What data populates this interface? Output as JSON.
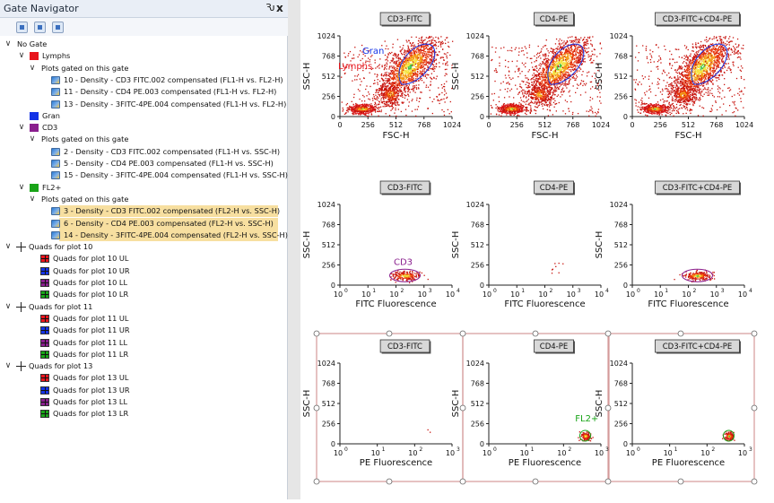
{
  "navigator": {
    "title": "Gate Navigator",
    "pin_glyph": "Ԅ",
    "close_glyph": "x",
    "toolbar": [
      {
        "icon": "gate-tool-icon"
      },
      {
        "icon": "copy-icon"
      },
      {
        "icon": "tree-options-icon"
      }
    ]
  },
  "tree": [
    {
      "label": "No Gate",
      "indent": 0,
      "expander": "v",
      "icon": "none"
    },
    {
      "label": "Lymphs",
      "indent": 1,
      "expander": "v",
      "icon": "gate",
      "color": "#e8141c"
    },
    {
      "label": "Plots gated on this gate",
      "indent": 2,
      "expander": "v",
      "icon": "none"
    },
    {
      "label": "10 - Density - CD3 FITC.002 compensated (FL1-H vs. FL2-H)",
      "indent": 3,
      "icon": "plot"
    },
    {
      "label": "11 - Density - CD4 PE.003 compensated (FL1-H vs. FL2-H)",
      "indent": 3,
      "icon": "plot"
    },
    {
      "label": "13 - Density - 3FITC-4PE.004 compensated (FL1-H vs. FL2-H)",
      "indent": 3,
      "icon": "plot"
    },
    {
      "label": "Gran",
      "indent": 1,
      "icon": "gate",
      "color": "#1433e6"
    },
    {
      "label": "CD3",
      "indent": 1,
      "expander": "v",
      "icon": "gate",
      "color": "#8a1f8e"
    },
    {
      "label": "Plots gated on this gate",
      "indent": 2,
      "expander": "v",
      "icon": "none"
    },
    {
      "label": "2 - Density - CD3 FITC.002 compensated (FL1-H vs. SSC-H)",
      "indent": 3,
      "icon": "plot"
    },
    {
      "label": "5 - Density - CD4 PE.003 compensated (FL1-H vs. SSC-H)",
      "indent": 3,
      "icon": "plot"
    },
    {
      "label": "15 - Density - 3FITC-4PE.004 compensated (FL1-H vs. SSC-H)",
      "indent": 3,
      "icon": "plot"
    },
    {
      "label": "FL2+",
      "indent": 1,
      "expander": "v",
      "icon": "gate",
      "color": "#19a418"
    },
    {
      "label": "Plots gated on this gate",
      "indent": 2,
      "expander": "v",
      "icon": "none"
    },
    {
      "label": "3 - Density - CD3 FITC.002 compensated (FL2-H vs. SSC-H)",
      "indent": 3,
      "icon": "plot",
      "selected": true
    },
    {
      "label": "6 - Density - CD4 PE.003 compensated (FL2-H vs. SSC-H)",
      "indent": 3,
      "icon": "plot",
      "selected": true
    },
    {
      "label": "14 - Density - 3FITC-4PE.004 compensated (FL2-H vs. SSC-H)",
      "indent": 3,
      "icon": "plot",
      "selected": true
    },
    {
      "label": "Quads for plot 10",
      "indent": 0,
      "expander": "v",
      "icon": "cross"
    },
    {
      "label": "Quads for plot 10 UL",
      "indent": 2,
      "icon": "quad",
      "color": "#e8141c"
    },
    {
      "label": "Quads for plot 10 UR",
      "indent": 2,
      "icon": "quad",
      "color": "#1433e6"
    },
    {
      "label": "Quads for plot 10 LL",
      "indent": 2,
      "icon": "quad",
      "color": "#8a1f8e"
    },
    {
      "label": "Quads for plot 10 LR",
      "indent": 2,
      "icon": "quad",
      "color": "#19a418"
    },
    {
      "label": "Quads for plot 11",
      "indent": 0,
      "expander": "v",
      "icon": "cross"
    },
    {
      "label": "Quads for plot 11 UL",
      "indent": 2,
      "icon": "quad",
      "color": "#e8141c"
    },
    {
      "label": "Quads for plot 11 UR",
      "indent": 2,
      "icon": "quad",
      "color": "#1433e6"
    },
    {
      "label": "Quads for plot 11 LL",
      "indent": 2,
      "icon": "quad",
      "color": "#8a1f8e"
    },
    {
      "label": "Quads for plot 11 LR",
      "indent": 2,
      "icon": "quad",
      "color": "#19a418"
    },
    {
      "label": "Quads for plot 13",
      "indent": 0,
      "expander": "v",
      "icon": "cross"
    },
    {
      "label": "Quads for plot 13 UL",
      "indent": 2,
      "icon": "quad",
      "color": "#e8141c"
    },
    {
      "label": "Quads for plot 13 UR",
      "indent": 2,
      "icon": "quad",
      "color": "#1433e6"
    },
    {
      "label": "Quads for plot 13 LL",
      "indent": 2,
      "icon": "quad",
      "color": "#8a1f8e"
    },
    {
      "label": "Quads for plot 13 LR",
      "indent": 2,
      "icon": "quad",
      "color": "#19a418"
    }
  ],
  "plots": [
    {
      "title": "CD3-FITC",
      "xlabel": "FSC-H",
      "ylabel": "SSC-H",
      "xscale": "linear",
      "xticks": [
        "0",
        "256",
        "512",
        "768",
        "1024"
      ],
      "yticks": [
        "0",
        "256",
        "512",
        "768",
        "1024"
      ],
      "gate_labels": [
        {
          "text": "Gran",
          "color": "#1433e6"
        },
        {
          "text": "Lymphs",
          "color": "#e8141c"
        }
      ],
      "kind": "fsc"
    },
    {
      "title": "CD4-PE",
      "xlabel": "FSC-H",
      "ylabel": "SSC-H",
      "xscale": "linear",
      "xticks": [
        "0",
        "256",
        "512",
        "768",
        "1024"
      ],
      "yticks": [
        "0",
        "256",
        "512",
        "768",
        "1024"
      ],
      "gate_labels": [],
      "kind": "fsc"
    },
    {
      "title": "CD3-FITC+CD4-PE",
      "xlabel": "FSC-H",
      "ylabel": "SSC-H",
      "xscale": "linear",
      "xticks": [
        "0",
        "256",
        "512",
        "768",
        "1024"
      ],
      "yticks": [
        "0",
        "256",
        "512",
        "768",
        "1024"
      ],
      "gate_labels": [],
      "kind": "fsc"
    },
    {
      "title": "CD3-FITC",
      "xlabel": "FITC Fluorescence",
      "ylabel": "SSC-H",
      "xscale": "log",
      "xticks_base": [
        "10",
        "10",
        "10",
        "10",
        "10"
      ],
      "xticks_exp": [
        "0",
        "1",
        "2",
        "3",
        "4"
      ],
      "yticks": [
        "0",
        "256",
        "512",
        "768",
        "1024"
      ],
      "gate_labels": [
        {
          "text": "CD3",
          "color": "#8a1f8e"
        }
      ],
      "kind": "fitc"
    },
    {
      "title": "CD4-PE",
      "xlabel": "FITC Fluorescence",
      "ylabel": "SSC-H",
      "xscale": "log",
      "xticks_base": [
        "10",
        "10",
        "10",
        "10",
        "10"
      ],
      "xticks_exp": [
        "0",
        "1",
        "2",
        "3",
        "4"
      ],
      "yticks": [
        "0",
        "256",
        "512",
        "768",
        "1024"
      ],
      "gate_labels": [],
      "kind": "sparse"
    },
    {
      "title": "CD3-FITC+CD4-PE",
      "xlabel": "FITC Fluorescence",
      "ylabel": "SSC-H",
      "xscale": "log",
      "xticks_base": [
        "10",
        "10",
        "10",
        "10",
        "10"
      ],
      "xticks_exp": [
        "0",
        "1",
        "2",
        "3",
        "4"
      ],
      "yticks": [
        "0",
        "256",
        "512",
        "768",
        "1024"
      ],
      "gate_labels": [],
      "kind": "fitc"
    },
    {
      "title": "CD3-FITC",
      "xlabel": "PE Fluorescence",
      "ylabel": "SSC-H",
      "xscale": "log",
      "xticks_base": [
        "10",
        "10",
        "10",
        "10"
      ],
      "xticks_exp": [
        "0",
        "1",
        "2",
        "3"
      ],
      "yticks": [
        "0",
        "256",
        "512",
        "768",
        "1024"
      ],
      "gate_labels": [],
      "kind": "pe-sparse",
      "selected": true
    },
    {
      "title": "CD4-PE",
      "xlabel": "PE Fluorescence",
      "ylabel": "SSC-H",
      "xscale": "log",
      "xticks_base": [
        "10",
        "10",
        "10",
        "10"
      ],
      "xticks_exp": [
        "0",
        "1",
        "2",
        "3"
      ],
      "yticks": [
        "0",
        "256",
        "512",
        "768",
        "1024"
      ],
      "gate_labels": [
        {
          "text": "FL2+",
          "color": "#19a418"
        }
      ],
      "kind": "pe",
      "selected": true
    },
    {
      "title": "CD3-FITC+CD4-PE",
      "xlabel": "PE Fluorescence",
      "ylabel": "SSC-H",
      "xscale": "log",
      "xticks_base": [
        "10",
        "10",
        "10",
        "10"
      ],
      "xticks_exp": [
        "0",
        "1",
        "2",
        "3"
      ],
      "yticks": [
        "0",
        "256",
        "512",
        "768",
        "1024"
      ],
      "gate_labels": [],
      "kind": "pe",
      "selected": true
    }
  ]
}
